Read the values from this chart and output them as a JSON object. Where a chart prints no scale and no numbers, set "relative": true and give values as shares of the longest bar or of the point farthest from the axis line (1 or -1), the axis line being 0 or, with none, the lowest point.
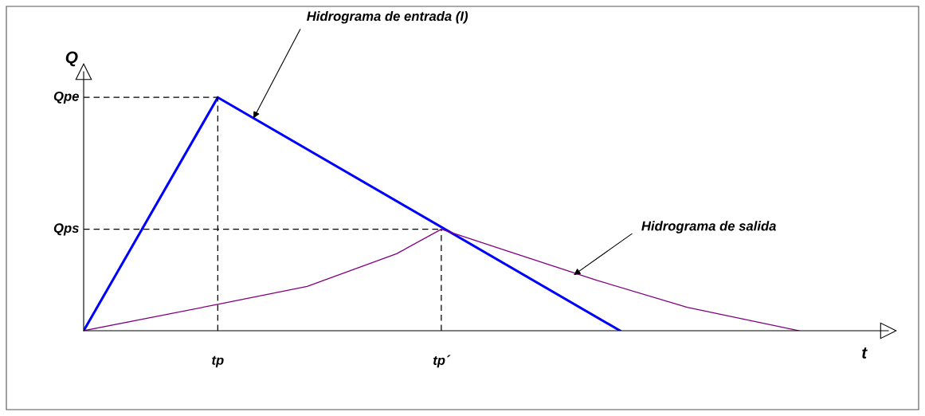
{
  "chart_data": {
    "type": "line",
    "relative": true,
    "xlabel": "t",
    "ylabel": "Q",
    "marker": "none",
    "categories": [
      null,
      null,
      null,
      null,
      null,
      null,
      "tp",
      null,
      null,
      null,
      null,
      null,
      null,
      null,
      null,
      null,
      "tp´",
      null,
      null,
      null,
      null,
      null,
      null,
      null,
      null,
      null,
      null,
      null,
      null,
      null,
      null,
      null,
      null,
      null,
      null,
      null,
      null
    ],
    "series": [
      {
        "color": "#0000ff",
        "values": [
          0,
          null,
          null,
          null,
          null,
          null,
          1,
          null,
          null,
          null,
          null,
          null,
          null,
          null,
          null,
          null,
          null,
          null,
          null,
          null,
          null,
          null,
          null,
          null,
          0,
          null,
          null,
          null,
          null,
          null,
          null,
          null,
          null,
          null,
          null,
          null,
          null
        ]
      },
      {
        "color": "#800080",
        "values": [
          0,
          null,
          null,
          null,
          null,
          null,
          0.113,
          null,
          null,
          null,
          0.19,
          null,
          null,
          null,
          0.33,
          null,
          0.435,
          null,
          null,
          0.34,
          null,
          null,
          null,
          0.215,
          null,
          null,
          null,
          0.1,
          null,
          null,
          null,
          null,
          0,
          null,
          null,
          null,
          null
        ]
      },
      {
        "name": "Qpe",
        "color": "#000000",
        "line_style": "dashed",
        "values": [
          1,
          1,
          1,
          1,
          1,
          1,
          1,
          null,
          null,
          null,
          null,
          null,
          null,
          null,
          null,
          null,
          null,
          null,
          null,
          null,
          null,
          null,
          null,
          null,
          null,
          null,
          null,
          null,
          null,
          null,
          null,
          null,
          null,
          null,
          null,
          null,
          null
        ]
      },
      {
        "name": "Qps",
        "color": "#000000",
        "line_style": "dashed",
        "values": [
          0.435,
          0.435,
          0.435,
          0.435,
          0.435,
          0.435,
          0.435,
          0.435,
          0.435,
          0.435,
          0.435,
          0.435,
          0.435,
          0.435,
          0.435,
          0.435,
          0.435,
          null,
          null,
          null,
          null,
          null,
          null,
          null,
          null,
          null,
          null,
          null,
          null,
          null,
          null,
          null,
          null,
          null,
          null,
          null,
          null
        ]
      }
    ],
    "ref_lines": [
      {
        "axis": "x",
        "value": "tp",
        "color": "#000000",
        "line_style": "dashed"
      },
      {
        "axis": "x",
        "value": "tp´",
        "color": "#000000",
        "line_style": "dashed"
      }
    ],
    "annotations": [
      "Hidrograma de entrada (I)",
      "Hidrograma de salida"
    ]
  }
}
